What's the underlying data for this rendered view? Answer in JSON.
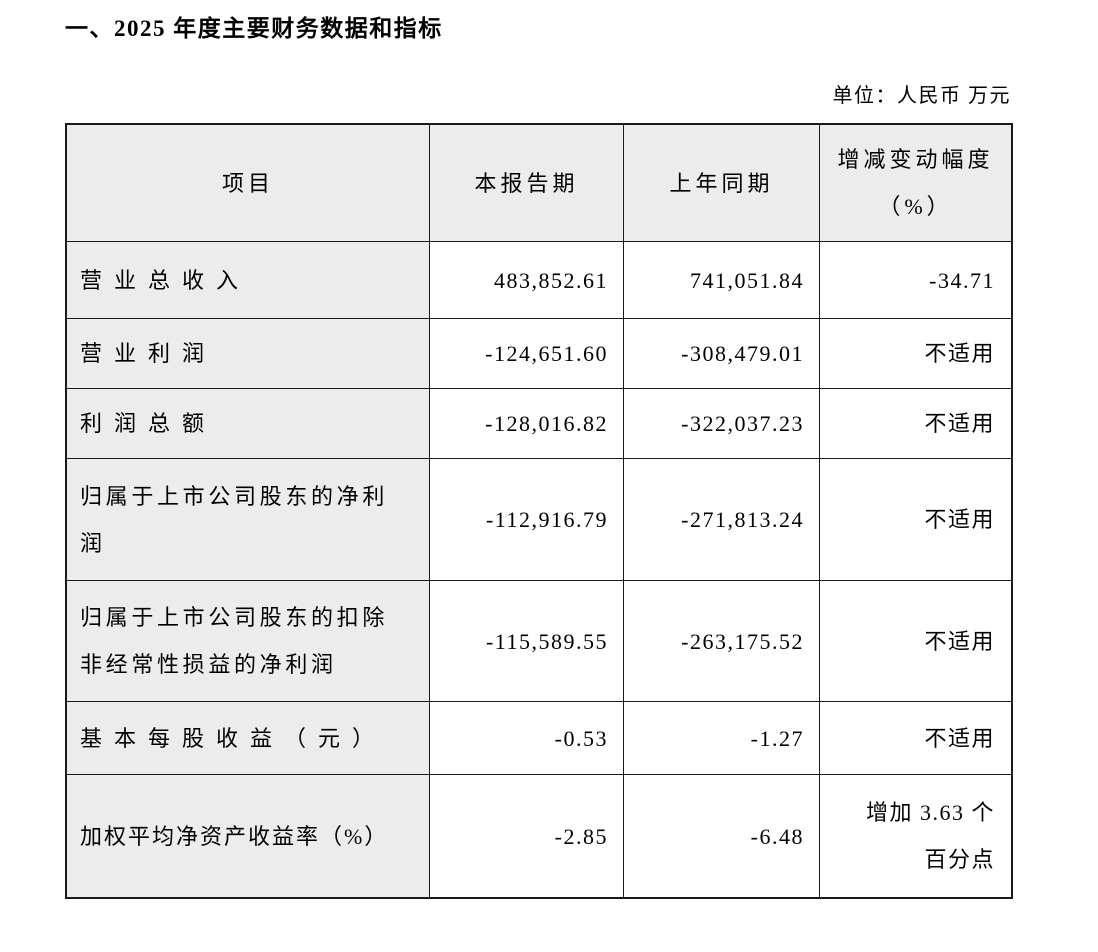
{
  "page": {
    "section_title": "一、2025 年度主要财务数据和指标",
    "unit_note": "单位：人民币 万元"
  },
  "table": {
    "header": {
      "item": "项目",
      "current": "本报告期",
      "prior": "上年同期",
      "change": [
        "增减变动幅度",
        "（%）"
      ]
    },
    "rows": [
      {
        "item": "营业总收入",
        "current": "483,852.61",
        "prior": "741,051.84",
        "change": "-34.71"
      },
      {
        "item": "营业利润",
        "current": "-124,651.60",
        "prior": "-308,479.01",
        "change": "不适用"
      },
      {
        "item": "利润总额",
        "current": "-128,016.82",
        "prior": "-322,037.23",
        "change": "不适用"
      },
      {
        "item": [
          "归属于上市公司股东的净利",
          "润"
        ],
        "current": "-112,916.79",
        "prior": "-271,813.24",
        "change": "不适用"
      },
      {
        "item": [
          "归属于上市公司股东的扣除",
          "非经常性损益的净利润"
        ],
        "current": "-115,589.55",
        "prior": "-263,175.52",
        "change": "不适用"
      },
      {
        "item": "基本每股收益（元）",
        "current": "-0.53",
        "prior": "-1.27",
        "change": "不适用"
      },
      {
        "item": "加权平均净资产收益率（%）",
        "current": "-2.85",
        "prior": "-6.48",
        "change": [
          "增加 3.63 个",
          "百分点"
        ]
      }
    ],
    "colors": {
      "shaded_cell_bg": "#ececec",
      "border": "#1a1a1a",
      "text": "#000000",
      "page_bg": "#ffffff"
    }
  }
}
